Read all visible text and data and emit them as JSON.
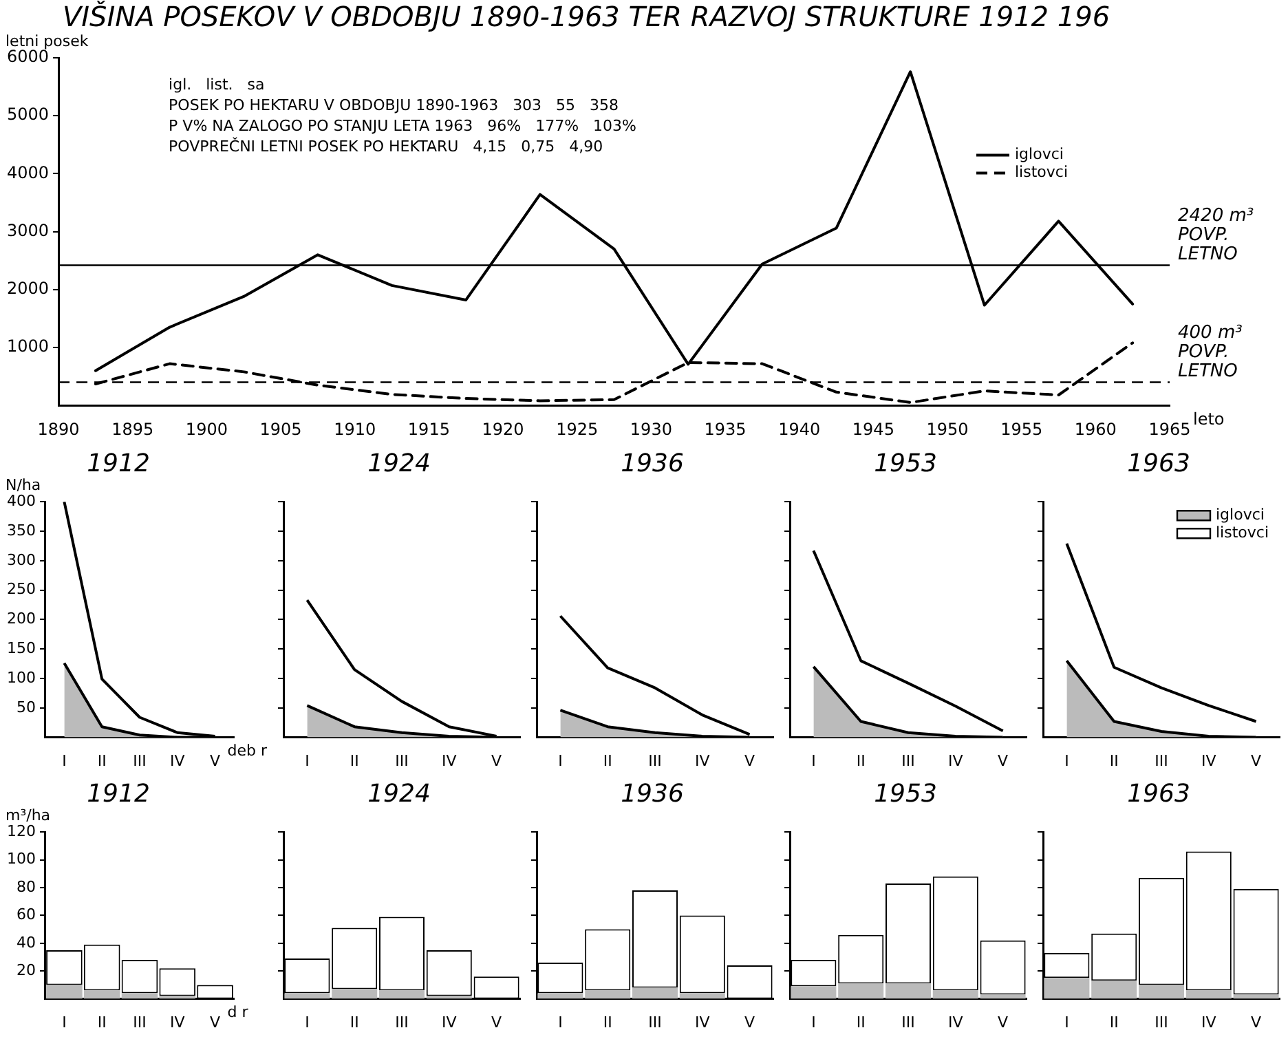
{
  "chart_data": [
    {
      "type": "line",
      "title": "VIŠINA POSEKOV V OBDOBJU 1890-1963 TER RAZVOJ STRUKTURE 1912 196",
      "ylabel": "letni posek",
      "xlabel": "leto",
      "x": [
        1892.5,
        1897.5,
        1902.5,
        1907.5,
        1912.5,
        1917.5,
        1922.5,
        1927.5,
        1932.5,
        1937.5,
        1942.5,
        1947.5,
        1952.5,
        1957.5,
        1962.5
      ],
      "series": [
        {
          "name": "iglovci",
          "color": "#000000",
          "line_style": "solid",
          "values": [
            600,
            1350,
            1880,
            2600,
            2070,
            1820,
            3640,
            2700,
            710,
            2440,
            3060,
            5760,
            1730,
            3180,
            1750
          ]
        },
        {
          "name": "listovci",
          "color": "#000000",
          "line_style": "dashed",
          "values": [
            370,
            720,
            580,
            350,
            190,
            120,
            80,
            100,
            740,
            720,
            230,
            50,
            250,
            180,
            1080
          ]
        }
      ],
      "xlim": [
        1890,
        1965
      ],
      "xticks": [
        1890,
        1895,
        1900,
        1905,
        1910,
        1915,
        1920,
        1925,
        1930,
        1935,
        1940,
        1945,
        1950,
        1955,
        1960,
        1965
      ],
      "ylim": [
        0,
        6000
      ],
      "yticks": [
        1000,
        2000,
        3000,
        4000,
        5000,
        6000
      ],
      "ref_lines": [
        {
          "axis": "y",
          "value": 2420,
          "label": "2420 m³ POVP. LETNO",
          "line_style": "solid"
        },
        {
          "axis": "y",
          "value": 400,
          "label": "400 m³ POVP. LETNO",
          "line_style": "dashed"
        }
      ],
      "annotations": [
        "igl.   list.   sa",
        "POSEK PO HEKTARU V OBDOBJU 1890-1963   303   55   358",
        "P V% NA ZALOGO PO STANJU LETA 1963   96%   177%   103%",
        "POVPREČNI LETNI POSEK PO HEKTARU   4,15   0,75   4,90"
      ],
      "legend": "right",
      "marker": "none"
    },
    {
      "type": "area",
      "stacked": true,
      "title": "1912",
      "ylabel": "N/ha",
      "xlabel": "deb r",
      "categories": [
        "I",
        "II",
        "III",
        "IV",
        "V"
      ],
      "ylim": [
        0,
        400
      ],
      "yticks": [
        50,
        100,
        150,
        200,
        250,
        300,
        350,
        400
      ],
      "marker": "none",
      "series": [
        {
          "color": "#bbbbbb",
          "values": [
            126,
            18,
            4,
            0,
            0
          ]
        },
        {
          "color": "#ffffff",
          "values": [
            274,
            81,
            30,
            8,
            2
          ]
        }
      ]
    },
    {
      "type": "area",
      "stacked": true,
      "title": "1924",
      "categories": [
        "I",
        "II",
        "III",
        "IV",
        "V"
      ],
      "ylim": [
        0,
        400
      ],
      "yticks": [
        50,
        100,
        150,
        200,
        250,
        300,
        350,
        400
      ],
      "tick_labels": "x",
      "marker": "none",
      "series": [
        {
          "color": "#bbbbbb",
          "values": [
            54,
            18,
            8,
            2,
            0
          ]
        },
        {
          "color": "#ffffff",
          "values": [
            179,
            97,
            53,
            16,
            2
          ]
        }
      ]
    },
    {
      "type": "area",
      "stacked": true,
      "title": "1936",
      "categories": [
        "I",
        "II",
        "III",
        "IV",
        "V"
      ],
      "ylim": [
        0,
        400
      ],
      "yticks": [
        50,
        100,
        150,
        200,
        250,
        300,
        350,
        400
      ],
      "tick_labels": "x",
      "marker": "none",
      "series": [
        {
          "color": "#bbbbbb",
          "values": [
            46,
            18,
            8,
            2,
            0
          ]
        },
        {
          "color": "#ffffff",
          "values": [
            160,
            100,
            76,
            36,
            5
          ]
        }
      ]
    },
    {
      "type": "area",
      "stacked": true,
      "title": "1953",
      "categories": [
        "I",
        "II",
        "III",
        "IV",
        "V"
      ],
      "ylim": [
        0,
        400
      ],
      "yticks": [
        50,
        100,
        150,
        200,
        250,
        300,
        350,
        400
      ],
      "tick_labels": "x",
      "marker": "none",
      "series": [
        {
          "color": "#bbbbbb",
          "values": [
            120,
            27,
            8,
            2,
            0
          ]
        },
        {
          "color": "#ffffff",
          "values": [
            197,
            103,
            84,
            51,
            11
          ]
        }
      ]
    },
    {
      "type": "area",
      "stacked": true,
      "title": "1963",
      "categories": [
        "I",
        "II",
        "III",
        "IV",
        "V"
      ],
      "ylim": [
        0,
        400
      ],
      "yticks": [
        50,
        100,
        150,
        200,
        250,
        300,
        350,
        400
      ],
      "tick_labels": "x",
      "marker": "none",
      "legend": "top right",
      "series": [
        {
          "name": "iglovci",
          "color": "#bbbbbb",
          "values": [
            130,
            27,
            10,
            2,
            0
          ]
        },
        {
          "name": "listovci",
          "color": "#ffffff",
          "values": [
            199,
            92,
            74,
            52,
            27
          ]
        }
      ]
    },
    {
      "type": "bar",
      "stacked": true,
      "title": "1912",
      "ylabel": "m³/ha",
      "xlabel": "d r",
      "categories": [
        "I",
        "II",
        "III",
        "IV",
        "V"
      ],
      "ylim": [
        0,
        120
      ],
      "yticks": [
        20,
        40,
        60,
        80,
        100,
        120
      ],
      "series": [
        {
          "color": "#bbbbbb",
          "values": [
            10,
            6,
            4,
            2,
            null
          ]
        },
        {
          "color": "#ffffff",
          "values": [
            25,
            33,
            24,
            20,
            10
          ]
        }
      ]
    },
    {
      "type": "bar",
      "stacked": true,
      "title": "1924",
      "categories": [
        "I",
        "II",
        "III",
        "IV",
        "V"
      ],
      "ylim": [
        0,
        120
      ],
      "yticks": [
        20,
        40,
        60,
        80,
        100,
        120
      ],
      "tick_labels": "x",
      "series": [
        {
          "color": "#bbbbbb",
          "values": [
            4,
            7,
            6,
            2,
            0
          ]
        },
        {
          "color": "#ffffff",
          "values": [
            25,
            44,
            53,
            33,
            16
          ]
        }
      ]
    },
    {
      "type": "bar",
      "stacked": true,
      "title": "1936",
      "categories": [
        "I",
        "II",
        "III",
        "IV",
        "V"
      ],
      "ylim": [
        0,
        120
      ],
      "yticks": [
        20,
        40,
        60,
        80,
        100,
        120
      ],
      "tick_labels": "x",
      "series": [
        {
          "color": "#bbbbbb",
          "values": [
            4,
            6,
            8,
            4,
            0
          ]
        },
        {
          "color": "#ffffff",
          "values": [
            22,
            44,
            70,
            56,
            24
          ]
        }
      ]
    },
    {
      "type": "bar",
      "stacked": true,
      "title": "1953",
      "categories": [
        "I",
        "II",
        "III",
        "IV",
        "V"
      ],
      "ylim": [
        0,
        120
      ],
      "yticks": [
        20,
        40,
        60,
        80,
        100,
        120
      ],
      "tick_labels": "x",
      "series": [
        {
          "color": "#bbbbbb",
          "values": [
            9,
            11,
            11,
            6,
            3
          ]
        },
        {
          "color": "#ffffff",
          "values": [
            19,
            35,
            72,
            82,
            39
          ]
        }
      ]
    },
    {
      "type": "bar",
      "stacked": true,
      "title": "1963",
      "categories": [
        "I",
        "II",
        "III",
        "IV",
        "V"
      ],
      "ylim": [
        0,
        120
      ],
      "yticks": [
        20,
        40,
        60,
        80,
        100,
        120
      ],
      "tick_labels": "x",
      "series": [
        {
          "color": "#bbbbbb",
          "values": [
            15,
            13,
            10,
            6,
            3
          ]
        },
        {
          "color": "#ffffff",
          "values": [
            18,
            34,
            77,
            100,
            76
          ]
        }
      ]
    }
  ]
}
